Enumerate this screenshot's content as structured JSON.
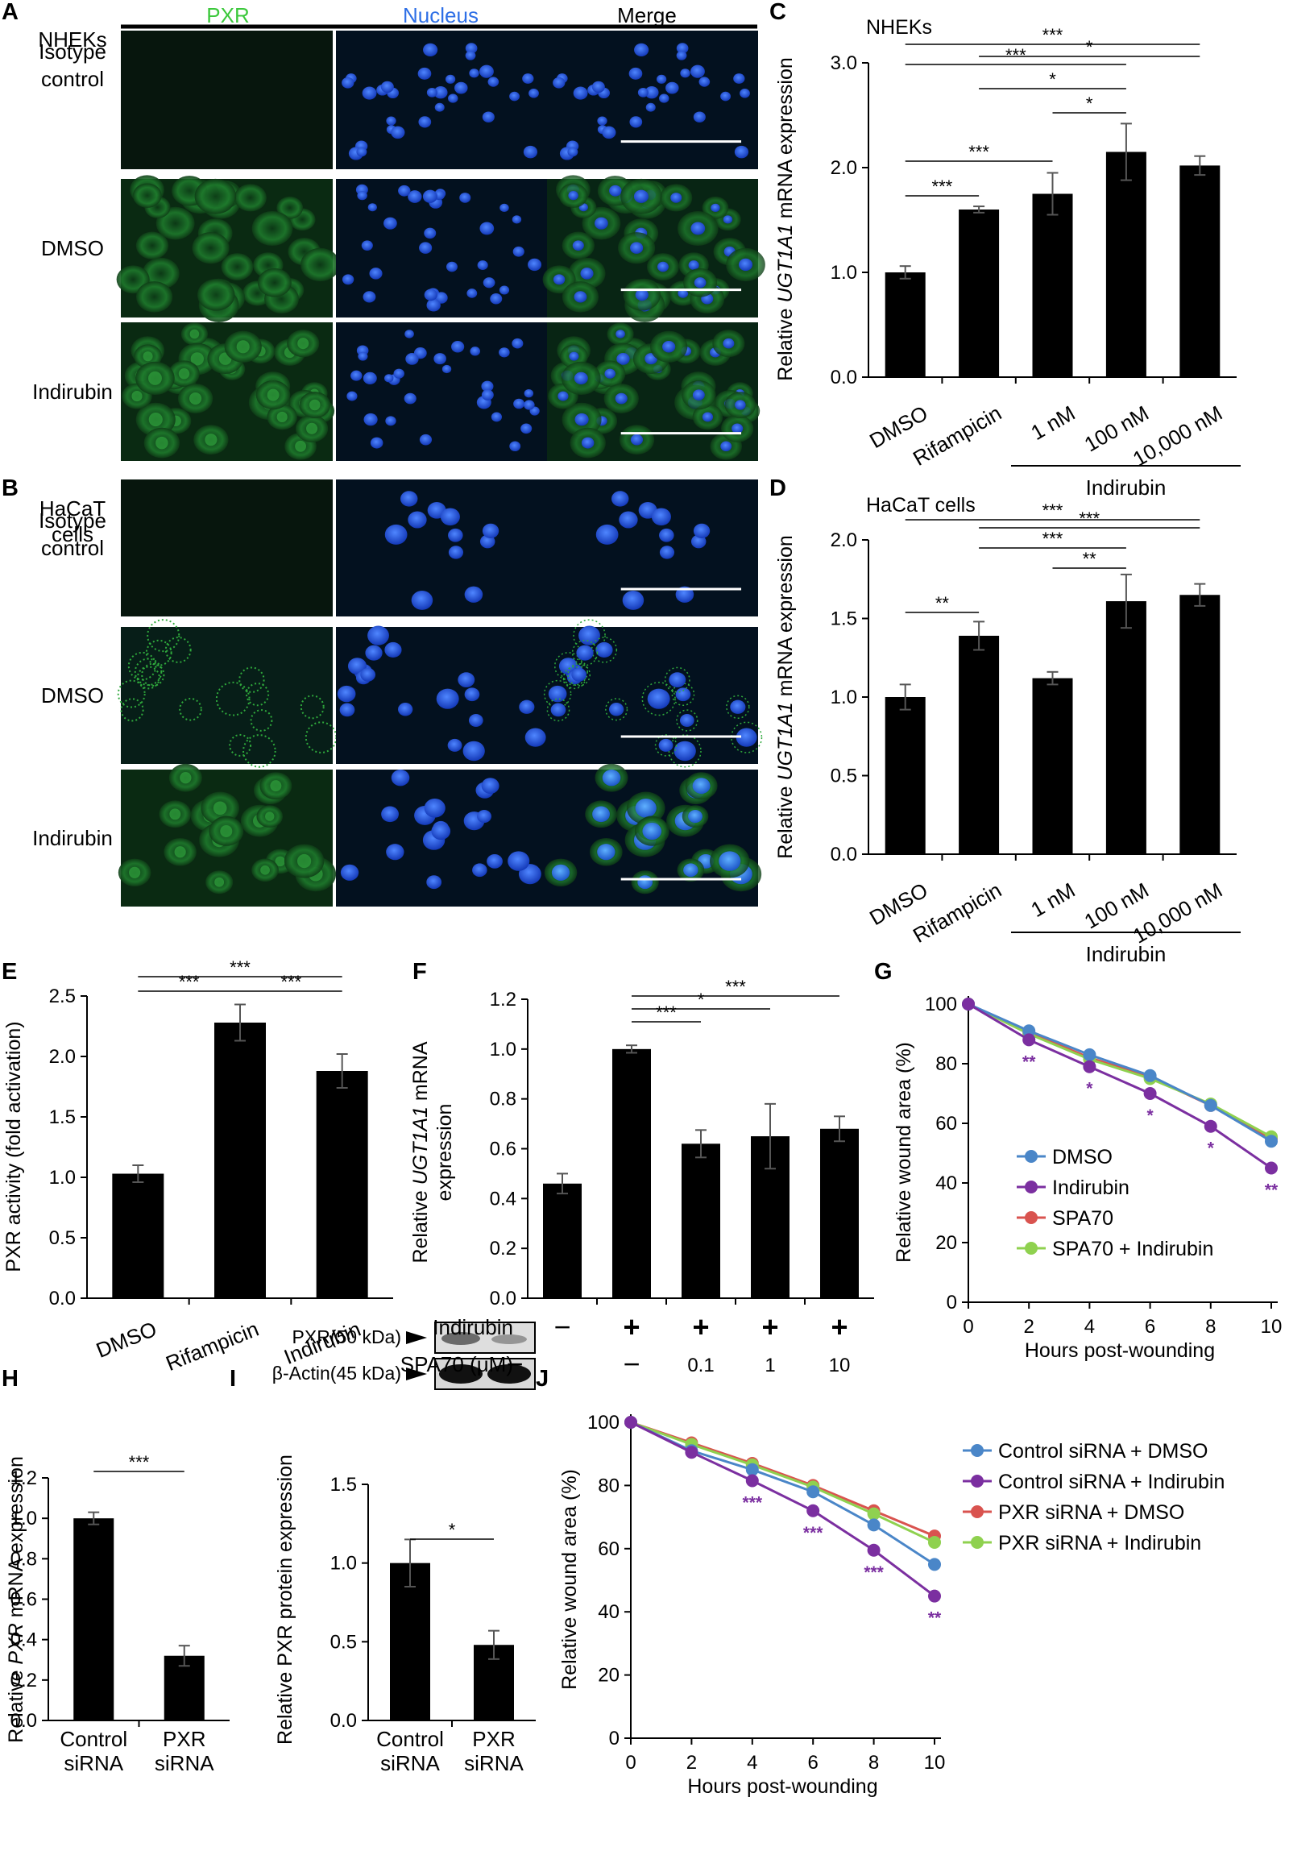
{
  "panel_letters": [
    "A",
    "B",
    "C",
    "D",
    "E",
    "F",
    "G",
    "H",
    "I",
    "J"
  ],
  "micrograph": {
    "col_headers": [
      {
        "text": "PXR",
        "color": "#3cc83c"
      },
      {
        "text": "Nucleus",
        "color": "#2e6fe6"
      },
      {
        "text": "Merge",
        "color": "#000000"
      }
    ],
    "panel_a": {
      "group": "NHEKs",
      "rows": [
        "Isotype\ncontrol",
        "DMSO",
        "Indirubin"
      ]
    },
    "panel_b": {
      "group": "HaCaT\ncells",
      "rows": [
        "Isotype\ncontrol",
        "DMSO",
        "Indirubin"
      ]
    },
    "colors": {
      "pxr": "#1f8a2a",
      "nucleus": "#1e4fd8",
      "background": "#04101e"
    }
  },
  "western": {
    "rows": [
      "PXR(50 kDa)",
      "β-Actin(45 kDa)"
    ]
  },
  "chart_data": [
    {
      "id": "C",
      "type": "bar",
      "title": "NHEKs",
      "categories": [
        "DMSO",
        "Rifampicin",
        "1 nM",
        "100 nM",
        "10,000 nM"
      ],
      "values": [
        1.0,
        1.6,
        1.75,
        2.15,
        2.02
      ],
      "errors": [
        0.06,
        0.03,
        0.2,
        0.27,
        0.09
      ],
      "ylabel_parts": [
        "Relative ",
        "UGT1A1",
        " mRNA expression"
      ],
      "ylim": [
        0,
        3
      ],
      "yticks": [
        "0.0",
        "1.0",
        "2.0",
        "3.0"
      ],
      "group_label": "Indirubin",
      "sig": [
        {
          "from": 0,
          "to": 1,
          "label": "***"
        },
        {
          "from": 0,
          "to": 2,
          "label": "***"
        },
        {
          "from": 2,
          "to": 3,
          "label": "*"
        },
        {
          "from": 1,
          "to": 3,
          "label": "*"
        },
        {
          "from": 0,
          "to": 3,
          "label": "***"
        },
        {
          "from": 1,
          "to": 4,
          "label": "*"
        },
        {
          "from": 0,
          "to": 4,
          "label": "***"
        }
      ]
    },
    {
      "id": "D",
      "type": "bar",
      "title": "HaCaT cells",
      "categories": [
        "DMSO",
        "Rifampicin",
        "1 nM",
        "100 nM",
        "10,000 nM"
      ],
      "values": [
        1.0,
        1.39,
        1.12,
        1.61,
        1.65
      ],
      "errors": [
        0.08,
        0.09,
        0.04,
        0.17,
        0.07
      ],
      "ylabel_parts": [
        "Relative ",
        "UGT1A1",
        " mRNA expression"
      ],
      "ylim": [
        0,
        2
      ],
      "yticks": [
        "0.0",
        "0.5",
        "1.0",
        "1.5",
        "2.0"
      ],
      "group_label": "Indirubin",
      "sig": [
        {
          "from": 0,
          "to": 1,
          "label": "**"
        },
        {
          "from": 2,
          "to": 3,
          "label": "**"
        },
        {
          "from": 1,
          "to": 3,
          "label": "***"
        },
        {
          "from": 1,
          "to": 4,
          "label": "***"
        },
        {
          "from": 0,
          "to": 4,
          "label": "***"
        }
      ]
    },
    {
      "id": "E",
      "type": "bar",
      "categories": [
        "DMSO",
        "Rifampicin",
        "Indirubin"
      ],
      "values": [
        1.03,
        2.28,
        1.88
      ],
      "errors": [
        0.07,
        0.15,
        0.14
      ],
      "ylabel_parts": [
        "PXR activity (fold activation)"
      ],
      "ylim": [
        0,
        2.5
      ],
      "yticks": [
        "0.0",
        "0.5",
        "1.0",
        "1.5",
        "2.0",
        "2.5"
      ],
      "sig": [
        {
          "from": 0,
          "to": 1,
          "label": "***"
        },
        {
          "from": 1,
          "to": 2,
          "label": "***"
        },
        {
          "from": 0,
          "to": 2,
          "label": "***"
        }
      ]
    },
    {
      "id": "F",
      "type": "bar",
      "categories": [
        "1",
        "2",
        "3",
        "4",
        "5"
      ],
      "values": [
        0.46,
        1.0,
        0.62,
        0.65,
        0.68
      ],
      "errors": [
        0.04,
        0.015,
        0.055,
        0.13,
        0.05
      ],
      "ylabel_parts": [
        "Relative ",
        "UGT1A1",
        " mRNA",
        "expression"
      ],
      "ylim": [
        0,
        1.2
      ],
      "yticks": [
        "0.0",
        "0.2",
        "0.4",
        "0.6",
        "0.8",
        "1.0",
        "1.2"
      ],
      "treat_rows": [
        {
          "label": "Indirubin",
          "values": [
            "−",
            "+",
            "+",
            "+",
            "+"
          ]
        },
        {
          "label": "SPA70 (μM)",
          "values": [
            "−",
            "−",
            "0.1",
            "1",
            "10"
          ]
        }
      ],
      "sig": [
        {
          "from": 1,
          "to": 2,
          "label": "***"
        },
        {
          "from": 1,
          "to": 3,
          "label": "*"
        },
        {
          "from": 1,
          "to": 4,
          "label": "***"
        }
      ]
    },
    {
      "id": "G",
      "type": "line",
      "x": [
        0,
        2,
        4,
        6,
        8,
        10
      ],
      "xlabel": "Hours post-wounding",
      "ylabel": "Relative wound area (%)",
      "ylim": [
        0,
        100
      ],
      "yticks": [
        "0",
        "20",
        "40",
        "60",
        "80",
        "100"
      ],
      "xticks": [
        "0",
        "2",
        "4",
        "6",
        "8",
        "10"
      ],
      "series": [
        {
          "name": "DMSO",
          "color": "#4a86c8",
          "values": [
            100,
            91,
            83,
            76,
            66,
            54
          ]
        },
        {
          "name": "Indirubin",
          "color": "#7b2fa0",
          "values": [
            100,
            88,
            79,
            70,
            59,
            45
          ]
        },
        {
          "name": "SPA70",
          "color": "#d9534f",
          "values": [
            100,
            90.5,
            82,
            75.5,
            66,
            55
          ]
        },
        {
          "name": "SPA70 + Indirubin",
          "color": "#8fd14f",
          "values": [
            100,
            90,
            81.5,
            75,
            66.5,
            55.5
          ]
        }
      ],
      "stars": [
        {
          "x": 2,
          "label": "**"
        },
        {
          "x": 4,
          "label": "*"
        },
        {
          "x": 6,
          "label": "*"
        },
        {
          "x": 8,
          "label": "*"
        },
        {
          "x": 10,
          "label": "**"
        }
      ],
      "star_color": "#7b2fa0"
    },
    {
      "id": "H",
      "type": "bar",
      "categories": [
        "Control\nsiRNA",
        "PXR\nsiRNA"
      ],
      "values": [
        1.0,
        0.32
      ],
      "errors": [
        0.03,
        0.05
      ],
      "ylabel_parts": [
        "Relative ",
        "PXR",
        " mRNA expression"
      ],
      "ylim": [
        0,
        1.2
      ],
      "yticks": [
        "0.0",
        "0.2",
        "0.4",
        "0.6",
        "0.8",
        "1.0",
        "1.2"
      ],
      "sig": [
        {
          "from": 0,
          "to": 1,
          "label": "***"
        }
      ]
    },
    {
      "id": "I",
      "type": "bar",
      "categories": [
        "Control\nsiRNA",
        "PXR\nsiRNA"
      ],
      "values": [
        1.0,
        0.48
      ],
      "errors": [
        0.15,
        0.09
      ],
      "ylabel_parts": [
        "Relative PXR protein expression"
      ],
      "ylim": [
        0,
        1.5
      ],
      "yticks": [
        "0.0",
        "0.5",
        "1.0",
        "1.5"
      ],
      "sig": [
        {
          "from": 0,
          "to": 1,
          "label": "*"
        }
      ]
    },
    {
      "id": "J",
      "type": "line",
      "x": [
        0,
        2,
        4,
        6,
        8,
        10
      ],
      "xlabel": "Hours post-wounding",
      "ylabel": "Relative wound area (%)",
      "ylim": [
        0,
        100
      ],
      "yticks": [
        "0",
        "20",
        "40",
        "60",
        "80",
        "100"
      ],
      "xticks": [
        "0",
        "2",
        "4",
        "6",
        "8",
        "10"
      ],
      "series": [
        {
          "name": "Control siRNA + DMSO",
          "color": "#4a86c8",
          "values": [
            100,
            91,
            85,
            78,
            67.5,
            55
          ]
        },
        {
          "name": "Control siRNA + Indirubin",
          "color": "#7b2fa0",
          "values": [
            100,
            90.5,
            81.5,
            72,
            59.5,
            45
          ]
        },
        {
          "name": "PXR siRNA + DMSO",
          "color": "#d9534f",
          "values": [
            100,
            93.5,
            87,
            80,
            72,
            64
          ]
        },
        {
          "name": "PXR siRNA + Indirubin",
          "color": "#8fd14f",
          "values": [
            100,
            93,
            86.5,
            79.5,
            71,
            62
          ]
        }
      ],
      "stars": [
        {
          "x": 4,
          "label": "***"
        },
        {
          "x": 6,
          "label": "***"
        },
        {
          "x": 8,
          "label": "***"
        },
        {
          "x": 10,
          "label": "**"
        }
      ],
      "star_color": "#7b2fa0"
    }
  ]
}
